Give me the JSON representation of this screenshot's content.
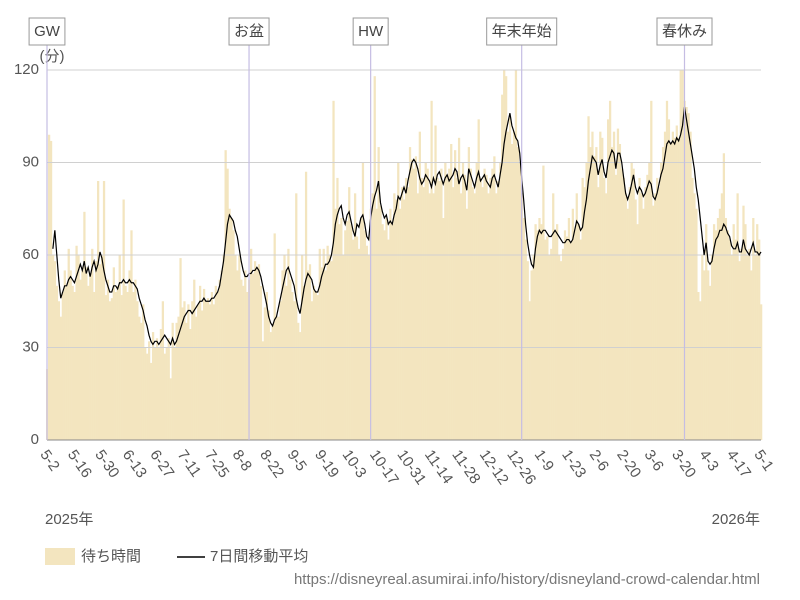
{
  "chart_data": {
    "type": "bar",
    "y_label": "(分)",
    "year_start": "2025年",
    "year_end": "2026年",
    "source": "https://disneyreal.asumirai.info/history/disneyland-crowd-calendar.html",
    "ylim": [
      0,
      120
    ],
    "yticks": [
      0,
      30,
      60,
      90,
      120
    ],
    "grid": true,
    "annotations": [
      {
        "label": "GW",
        "index": 0
      },
      {
        "label": "お盆",
        "index": 103
      },
      {
        "label": "HW",
        "index": 165
      },
      {
        "label": "年末年始",
        "index": 242
      },
      {
        "label": "春休み",
        "index": 325
      }
    ],
    "categories": [
      "5-2",
      null,
      null,
      null,
      null,
      null,
      null,
      null,
      null,
      null,
      null,
      null,
      null,
      null,
      "5-16",
      null,
      null,
      null,
      null,
      null,
      null,
      null,
      null,
      null,
      null,
      null,
      null,
      null,
      "5-30",
      null,
      null,
      null,
      null,
      null,
      null,
      null,
      null,
      null,
      null,
      null,
      null,
      null,
      "6-13",
      null,
      null,
      null,
      null,
      null,
      null,
      null,
      null,
      null,
      null,
      null,
      null,
      null,
      "6-27",
      null,
      null,
      null,
      null,
      null,
      null,
      null,
      null,
      null,
      null,
      null,
      null,
      null,
      "7-11",
      null,
      null,
      null,
      null,
      null,
      null,
      null,
      null,
      null,
      null,
      null,
      null,
      null,
      "7-25",
      null,
      null,
      null,
      null,
      null,
      null,
      null,
      null,
      null,
      null,
      null,
      null,
      null,
      "8-8",
      null,
      null,
      null,
      null,
      null,
      null,
      null,
      null,
      null,
      null,
      null,
      null,
      null,
      "8-22",
      null,
      null,
      null,
      null,
      null,
      null,
      null,
      null,
      null,
      null,
      null,
      null,
      null,
      "9-5",
      null,
      null,
      null,
      null,
      null,
      null,
      null,
      null,
      null,
      null,
      null,
      null,
      null,
      "9-19",
      null,
      null,
      null,
      null,
      null,
      null,
      null,
      null,
      null,
      null,
      null,
      null,
      null,
      "10-3",
      null,
      null,
      null,
      null,
      null,
      null,
      null,
      null,
      null,
      null,
      null,
      null,
      null,
      "10-17",
      null,
      null,
      null,
      null,
      null,
      null,
      null,
      null,
      null,
      null,
      null,
      null,
      null,
      "10-31",
      null,
      null,
      null,
      null,
      null,
      null,
      null,
      null,
      null,
      null,
      null,
      null,
      null,
      "11-14",
      null,
      null,
      null,
      null,
      null,
      null,
      null,
      null,
      null,
      null,
      null,
      null,
      null,
      "11-28",
      null,
      null,
      null,
      null,
      null,
      null,
      null,
      null,
      null,
      null,
      null,
      null,
      null,
      "12-12",
      null,
      null,
      null,
      null,
      null,
      null,
      null,
      null,
      null,
      null,
      null,
      null,
      null,
      "12-26",
      null,
      null,
      null,
      null,
      null,
      null,
      null,
      null,
      null,
      null,
      null,
      null,
      null,
      "1-9",
      null,
      null,
      null,
      null,
      null,
      null,
      null,
      null,
      null,
      null,
      null,
      null,
      null,
      "1-23",
      null,
      null,
      null,
      null,
      null,
      null,
      null,
      null,
      null,
      null,
      null,
      null,
      null,
      "2-6",
      null,
      null,
      null,
      null,
      null,
      null,
      null,
      null,
      null,
      null,
      null,
      null,
      null,
      "2-20",
      null,
      null,
      null,
      null,
      null,
      null,
      null,
      null,
      null,
      null,
      null,
      null,
      null,
      "3-6",
      null,
      null,
      null,
      null,
      null,
      null,
      null,
      null,
      null,
      null,
      null,
      null,
      null,
      "3-20",
      null,
      null,
      null,
      null,
      null,
      null,
      null,
      null,
      null,
      null,
      null,
      null,
      null,
      "4-3",
      null,
      null,
      null,
      null,
      null,
      null,
      null,
      null,
      null,
      null,
      null,
      null,
      null,
      "4-17",
      null,
      null,
      null,
      null,
      null,
      null,
      null,
      null,
      null,
      null,
      null,
      null,
      null,
      "5-1"
    ],
    "series": [
      {
        "name": "待ち時間",
        "type": "bar",
        "color": "#f3e5bf",
        "values": [
          23,
          99,
          97,
          60,
          58,
          50,
          45,
          40,
          48,
          55,
          50,
          62,
          55,
          50,
          48,
          63,
          60,
          52,
          55,
          74,
          56,
          50,
          54,
          62,
          48,
          58,
          84,
          57,
          60,
          84,
          47,
          52,
          45,
          46,
          56,
          48,
          50,
          60,
          47,
          78,
          50,
          48,
          55,
          68,
          48,
          52,
          45,
          40,
          38,
          44,
          30,
          28,
          32,
          25,
          35,
          30,
          33,
          30,
          36,
          45,
          28,
          30,
          33,
          20,
          38,
          30,
          38,
          40,
          59,
          43,
          45,
          38,
          44,
          36,
          45,
          52,
          40,
          44,
          50,
          42,
          49,
          45,
          46,
          44,
          48,
          44,
          50,
          48,
          52,
          55,
          60,
          94,
          88,
          75,
          72,
          68,
          60,
          55,
          60,
          52,
          50,
          55,
          48,
          52,
          62,
          54,
          58,
          56,
          57,
          50,
          32,
          43,
          48,
          42,
          35,
          37,
          67,
          40,
          40,
          45,
          55,
          60,
          50,
          62,
          52,
          48,
          45,
          80,
          38,
          35,
          60,
          50,
          87,
          55,
          57,
          45,
          50,
          48,
          47,
          62,
          56,
          62,
          55,
          63,
          60,
          58,
          110,
          75,
          85,
          70,
          72,
          60,
          68,
          71,
          82,
          70,
          65,
          80,
          66,
          62,
          72,
          90,
          68,
          63,
          60,
          75,
          80,
          118,
          75,
          95,
          76,
          70,
          68,
          72,
          65,
          75,
          70,
          80,
          78,
          90,
          75,
          82,
          78,
          85,
          82,
          95,
          91,
          88,
          92,
          80,
          100,
          85,
          82,
          90,
          88,
          80,
          110,
          80,
          102,
          85,
          84,
          88,
          72,
          90,
          86,
          88,
          96,
          82,
          94,
          85,
          98,
          80,
          90,
          86,
          75,
          95,
          88,
          82,
          80,
          90,
          104,
          85,
          82,
          88,
          86,
          80,
          85,
          88,
          92,
          80,
          84,
          90,
          112,
          120,
          118,
          100,
          105,
          96,
          100,
          120,
          95,
          90,
          80,
          72,
          65,
          58,
          45,
          55,
          60,
          70,
          68,
          72,
          70,
          89,
          65,
          66,
          60,
          62,
          80,
          68,
          70,
          60,
          58,
          62,
          68,
          66,
          72,
          64,
          75,
          68,
          80,
          70,
          65,
          85,
          82,
          90,
          105,
          95,
          100,
          92,
          95,
          82,
          100,
          98,
          85,
          80,
          104,
          110,
          95,
          100,
          86,
          101,
          96,
          88,
          85,
          80,
          75,
          82,
          90,
          88,
          78,
          70,
          85,
          80,
          75,
          82,
          86,
          90,
          110,
          76,
          80,
          85,
          82,
          90,
          95,
          100,
          110,
          104,
          96,
          100,
          98,
          102,
          98,
          120,
          120,
          110,
          108,
          106,
          100,
          85,
          80,
          75,
          48,
          45,
          60,
          55,
          70,
          55,
          50,
          60,
          70,
          68,
          72,
          75,
          80,
          93,
          72,
          68,
          65,
          60,
          70,
          65,
          80,
          58,
          62,
          76,
          70,
          60,
          62,
          55,
          72,
          60,
          70,
          65,
          44
        ]
      },
      {
        "name": "7日間移動平均",
        "type": "line",
        "color": "#000000",
        "values": [
          null,
          null,
          null,
          62,
          68,
          60,
          52,
          46,
          48,
          50,
          50,
          52,
          53,
          52,
          51,
          53,
          55,
          57,
          55,
          58,
          54,
          56,
          53,
          56,
          58,
          55,
          57,
          61,
          59,
          55,
          52,
          50,
          48,
          48,
          50,
          50,
          49,
          51,
          51,
          52,
          51,
          51,
          52,
          51,
          51,
          50,
          49,
          46,
          44,
          42,
          39,
          37,
          34,
          32,
          31,
          32,
          32,
          31,
          32,
          33,
          34,
          33,
          32,
          31,
          33,
          31,
          32,
          34,
          36,
          38,
          40,
          41,
          42,
          42,
          41,
          42,
          43,
          44,
          45,
          45,
          46,
          45,
          45,
          45,
          46,
          46,
          47,
          48,
          50,
          54,
          58,
          64,
          70,
          73,
          72,
          71,
          68,
          66,
          62,
          58,
          55,
          53,
          53,
          54,
          54,
          55,
          55,
          56,
          55,
          53,
          50,
          47,
          44,
          40,
          38,
          37,
          39,
          40,
          43,
          46,
          49,
          52,
          55,
          56,
          54,
          52,
          50,
          46,
          43,
          41,
          45,
          49,
          52,
          54,
          53,
          52,
          49,
          48,
          48,
          50,
          53,
          55,
          57,
          57,
          58,
          60,
          64,
          70,
          73,
          75,
          76,
          72,
          70,
          73,
          74,
          71,
          68,
          66,
          70,
          69,
          72,
          73,
          70,
          66,
          65,
          72,
          76,
          79,
          81,
          84,
          77,
          74,
          72,
          73,
          70,
          71,
          70,
          73,
          75,
          79,
          78,
          80,
          82,
          80,
          84,
          87,
          90,
          91,
          90,
          88,
          85,
          83,
          84,
          86,
          85,
          84,
          82,
          85,
          83,
          86,
          87,
          85,
          83,
          85,
          86,
          84,
          85,
          86,
          88,
          87,
          83,
          85,
          86,
          84,
          81,
          88,
          86,
          84,
          82,
          85,
          87,
          84,
          85,
          86,
          84,
          83,
          82,
          85,
          86,
          84,
          82,
          86,
          90,
          96,
          100,
          103,
          106,
          102,
          100,
          98,
          97,
          93,
          85,
          78,
          70,
          64,
          60,
          57,
          56,
          62,
          66,
          68,
          67,
          68,
          68,
          67,
          66,
          66,
          67,
          68,
          67,
          66,
          65,
          64,
          64,
          65,
          65,
          64,
          65,
          68,
          71,
          70,
          68,
          69,
          74,
          78,
          84,
          88,
          92,
          91,
          90,
          86,
          89,
          91,
          87,
          85,
          90,
          92,
          94,
          93,
          88,
          93,
          93,
          90,
          85,
          80,
          78,
          80,
          83,
          86,
          82,
          80,
          82,
          81,
          79,
          80,
          82,
          84,
          83,
          79,
          78,
          80,
          83,
          86,
          88,
          92,
          96,
          97,
          96,
          97,
          96,
          98,
          97,
          99,
          102,
          108,
          104,
          100,
          96,
          92,
          88,
          82,
          78,
          72,
          66,
          60,
          64,
          58,
          57,
          58,
          62,
          65,
          66,
          68,
          68,
          70,
          69,
          67,
          66,
          63,
          62,
          62,
          64,
          61,
          61,
          65,
          62,
          61,
          60,
          62,
          64,
          61,
          61,
          60,
          61
        ]
      }
    ]
  }
}
